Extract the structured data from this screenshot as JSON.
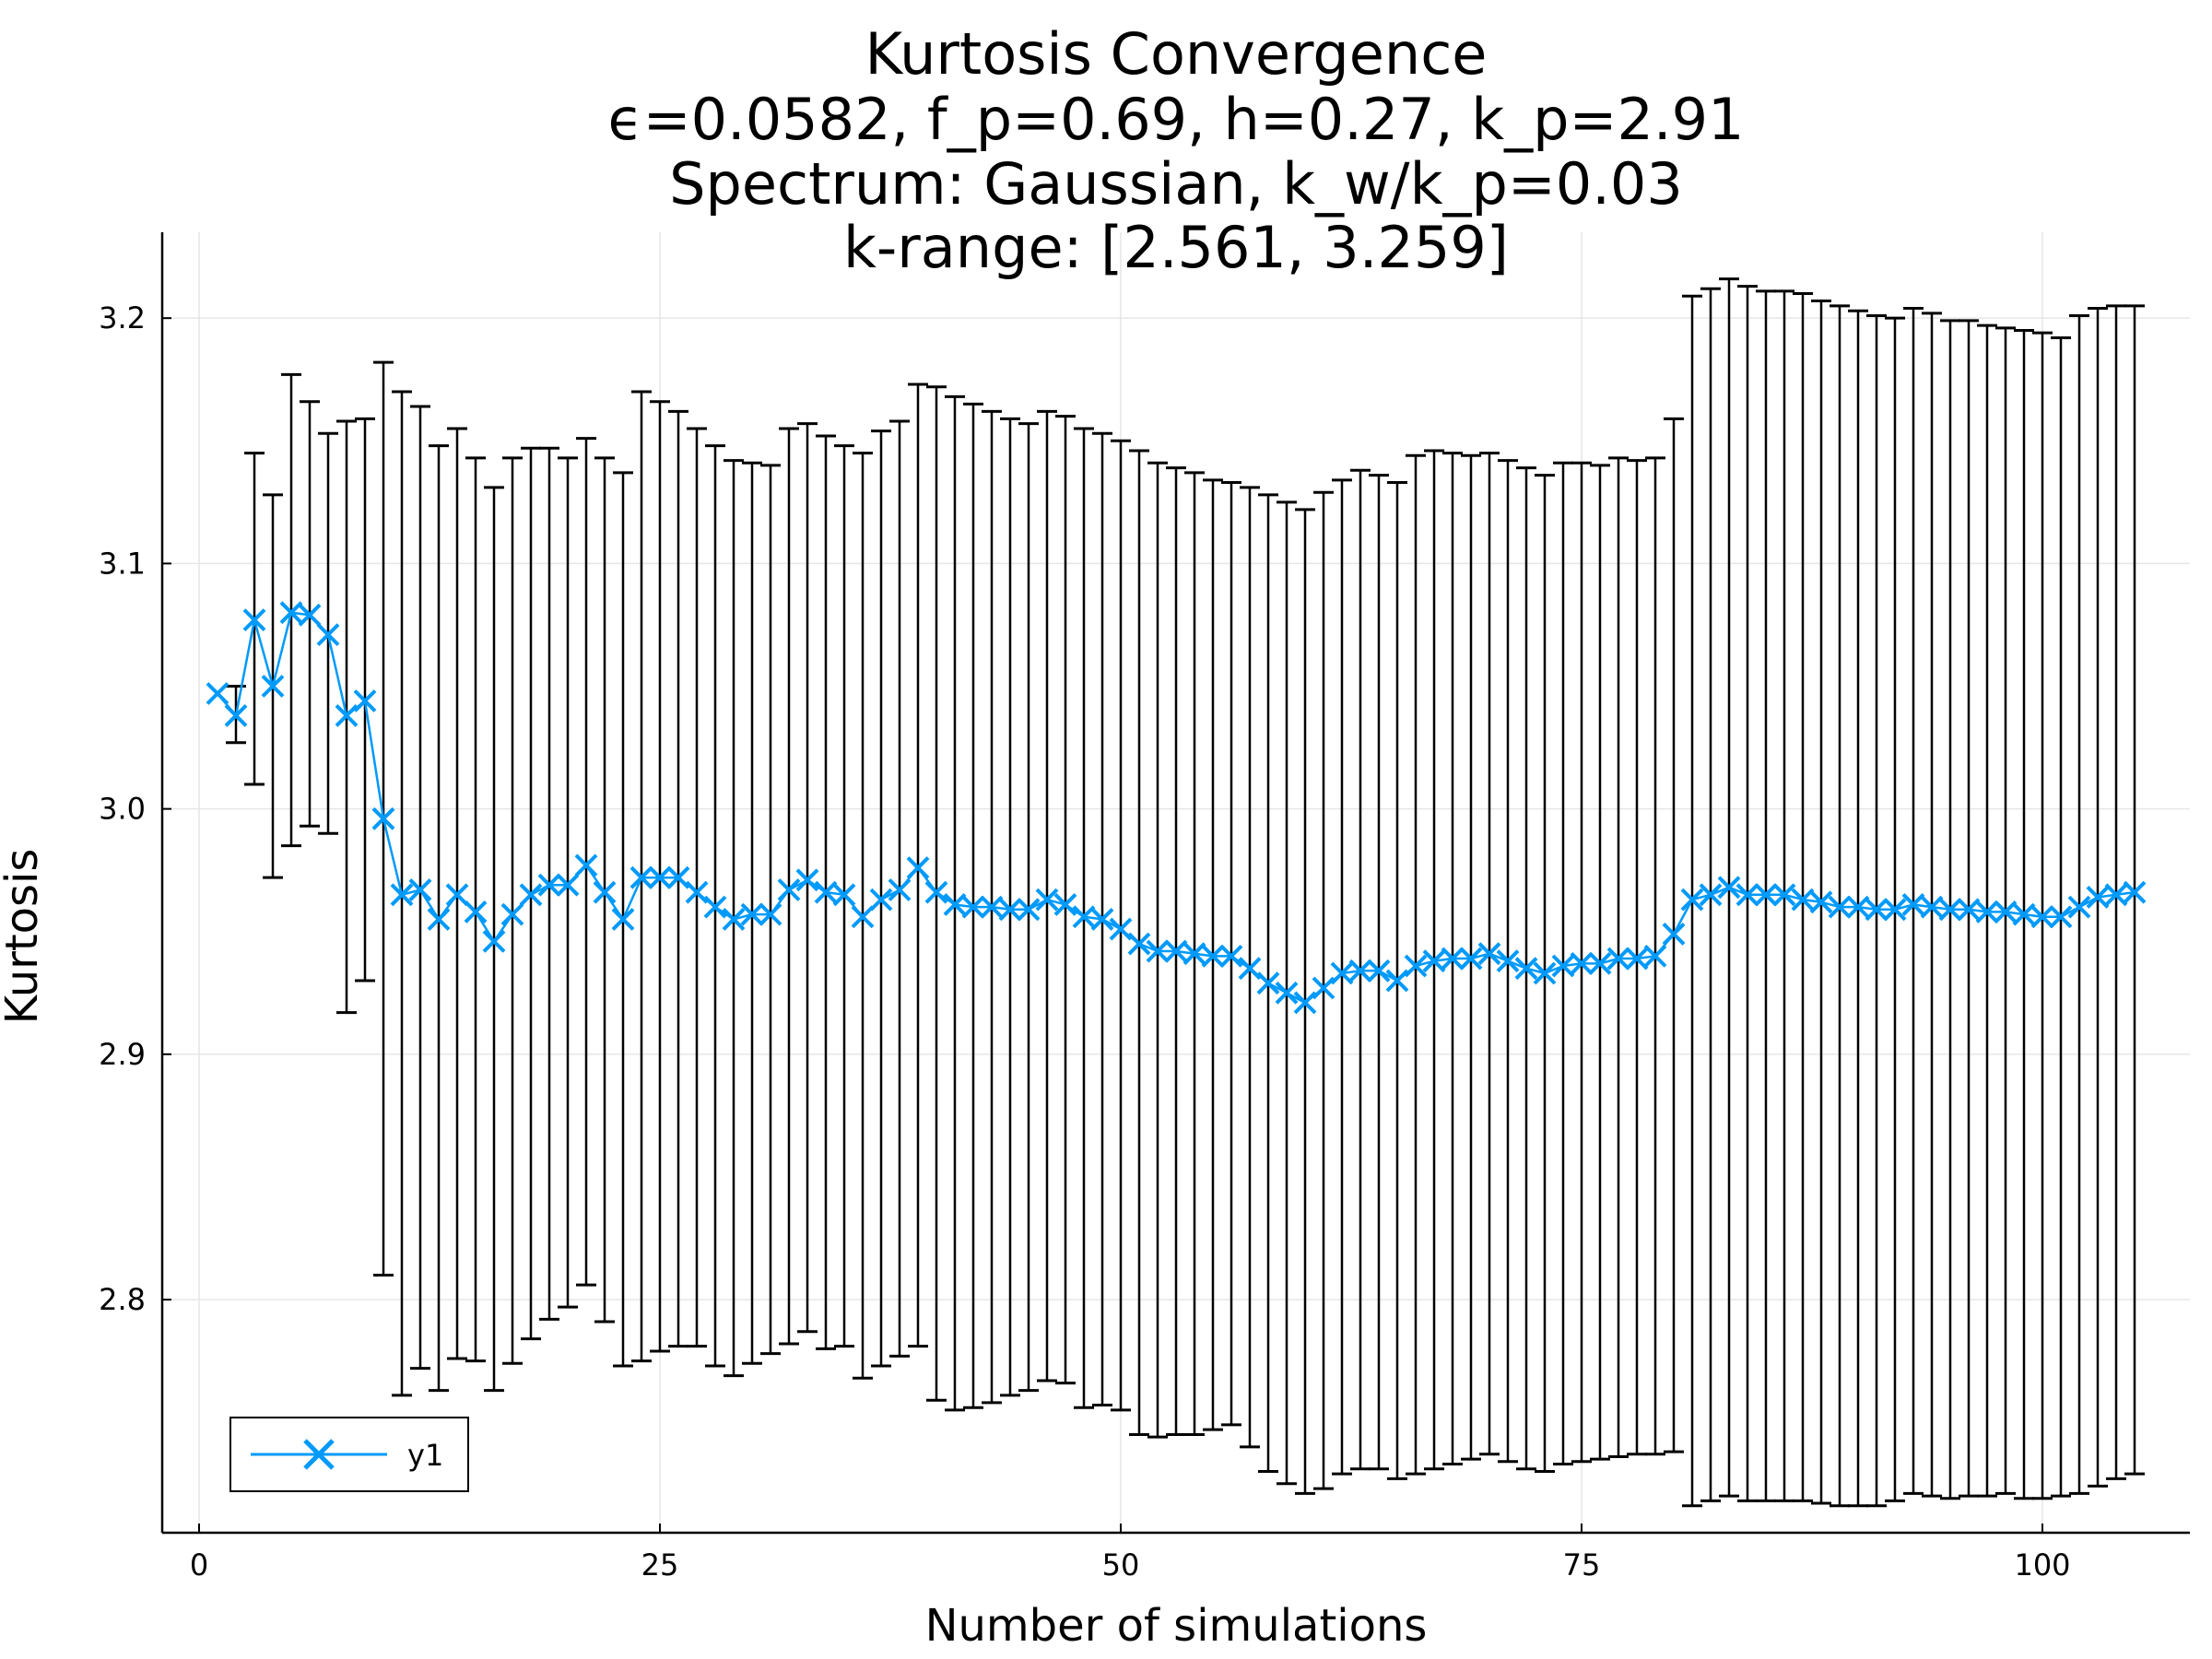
{
  "chart_data": {
    "type": "line",
    "title_lines": [
      "Kurtosis Convergence",
      "ϵ=0.0582, f_p=0.69, h=0.27, k_p=2.91",
      "Spectrum: Gaussian, k_w/k_p=0.03",
      "k-range: [2.561, 3.259]"
    ],
    "xlabel": "Number of simulations",
    "ylabel": "Kurtosis",
    "xlim": [
      -2,
      108
    ],
    "ylim": [
      2.705,
      3.235
    ],
    "xticks": [
      0,
      25,
      50,
      75,
      100
    ],
    "xtick_labels": [
      "0",
      "25",
      "50",
      "75",
      "100"
    ],
    "yticks": [
      2.8,
      2.9,
      3.0,
      3.1,
      3.2
    ],
    "ytick_labels": [
      "2.8",
      "2.9",
      "3.0",
      "3.1",
      "3.2"
    ],
    "grid": true,
    "legend": {
      "position": "bottom-left",
      "entries": [
        "y1"
      ]
    },
    "colors": {
      "series": "#009AFA",
      "errorbar": "#000000",
      "grid": "#e6e6e6",
      "axis": "#000000"
    },
    "series": [
      {
        "name": "y1",
        "marker": "x",
        "x": [
          1,
          2,
          3,
          4,
          5,
          6,
          7,
          8,
          9,
          10,
          11,
          12,
          13,
          14,
          15,
          16,
          17,
          18,
          19,
          20,
          21,
          22,
          23,
          24,
          25,
          26,
          27,
          28,
          29,
          30,
          31,
          32,
          33,
          34,
          35,
          36,
          37,
          38,
          39,
          40,
          41,
          42,
          43,
          44,
          45,
          46,
          47,
          48,
          49,
          50,
          51,
          52,
          53,
          54,
          55,
          56,
          57,
          58,
          59,
          60,
          61,
          62,
          63,
          64,
          65,
          66,
          67,
          68,
          69,
          70,
          71,
          72,
          73,
          74,
          75,
          76,
          77,
          78,
          79,
          80,
          81,
          82,
          83,
          84,
          85,
          86,
          87,
          88,
          89,
          90,
          91,
          92,
          93,
          94,
          95,
          96,
          97,
          98,
          99,
          100,
          101,
          102,
          103,
          104,
          105
        ],
        "values": [
          3.047,
          3.038,
          3.077,
          3.05,
          3.08,
          3.079,
          3.071,
          3.038,
          3.044,
          2.996,
          2.965,
          2.967,
          2.955,
          2.965,
          2.958,
          2.946,
          2.957,
          2.965,
          2.969,
          2.969,
          2.977,
          2.966,
          2.955,
          2.972,
          2.972,
          2.972,
          2.966,
          2.96,
          2.955,
          2.957,
          2.957,
          2.967,
          2.971,
          2.966,
          2.965,
          2.956,
          2.963,
          2.967,
          2.976,
          2.966,
          2.961,
          2.96,
          2.96,
          2.959,
          2.959,
          2.963,
          2.961,
          2.956,
          2.955,
          2.951,
          2.945,
          2.942,
          2.942,
          2.941,
          2.94,
          2.94,
          2.935,
          2.929,
          2.925,
          2.921,
          2.927,
          2.933,
          2.934,
          2.934,
          2.93,
          2.936,
          2.938,
          2.939,
          2.939,
          2.941,
          2.938,
          2.935,
          2.933,
          2.936,
          2.937,
          2.937,
          2.939,
          2.939,
          2.94,
          2.949,
          2.963,
          2.965,
          2.968,
          2.965,
          2.965,
          2.965,
          2.963,
          2.962,
          2.96,
          2.96,
          2.959,
          2.959,
          2.961,
          2.96,
          2.959,
          2.959,
          2.958,
          2.958,
          2.957,
          2.956,
          2.956,
          2.96,
          2.964,
          2.965,
          2.966
        ],
        "err_lower": [
          null,
          3.027,
          3.01,
          2.972,
          2.985,
          2.993,
          2.99,
          2.917,
          2.93,
          2.81,
          2.761,
          2.772,
          2.763,
          2.776,
          2.775,
          2.763,
          2.774,
          2.784,
          2.792,
          2.797,
          2.806,
          2.791,
          2.773,
          2.775,
          2.779,
          2.781,
          2.781,
          2.773,
          2.769,
          2.774,
          2.778,
          2.782,
          2.787,
          2.78,
          2.781,
          2.768,
          2.773,
          2.777,
          2.781,
          2.759,
          2.755,
          2.756,
          2.758,
          2.761,
          2.763,
          2.767,
          2.766,
          2.756,
          2.757,
          2.755,
          2.745,
          2.744,
          2.745,
          2.745,
          2.747,
          2.749,
          2.74,
          2.73,
          2.725,
          2.721,
          2.723,
          2.729,
          2.731,
          2.731,
          2.727,
          2.729,
          2.731,
          2.733,
          2.735,
          2.737,
          2.734,
          2.731,
          2.73,
          2.733,
          2.734,
          2.735,
          2.736,
          2.737,
          2.737,
          2.738,
          2.716,
          2.718,
          2.72,
          2.718,
          2.718,
          2.718,
          2.718,
          2.717,
          2.716,
          2.716,
          2.716,
          2.718,
          2.721,
          2.72,
          2.719,
          2.72,
          2.72,
          2.721,
          2.719,
          2.719,
          2.72,
          2.721,
          2.724,
          2.727,
          2.729
        ],
        "err_upper": [
          null,
          3.05,
          3.145,
          3.128,
          3.177,
          3.166,
          3.153,
          3.158,
          3.159,
          3.182,
          3.17,
          3.164,
          3.148,
          3.155,
          3.143,
          3.131,
          3.143,
          3.147,
          3.147,
          3.143,
          3.151,
          3.143,
          3.137,
          3.17,
          3.166,
          3.162,
          3.155,
          3.148,
          3.142,
          3.141,
          3.14,
          3.155,
          3.157,
          3.152,
          3.148,
          3.145,
          3.154,
          3.158,
          3.173,
          3.172,
          3.168,
          3.165,
          3.162,
          3.159,
          3.157,
          3.162,
          3.16,
          3.155,
          3.153,
          3.15,
          3.146,
          3.141,
          3.139,
          3.137,
          3.134,
          3.133,
          3.131,
          3.128,
          3.125,
          3.122,
          3.129,
          3.134,
          3.138,
          3.136,
          3.133,
          3.144,
          3.146,
          3.145,
          3.144,
          3.145,
          3.142,
          3.139,
          3.136,
          3.141,
          3.141,
          3.14,
          3.143,
          3.142,
          3.143,
          3.159,
          3.209,
          3.212,
          3.216,
          3.213,
          3.211,
          3.211,
          3.21,
          3.207,
          3.205,
          3.203,
          3.201,
          3.2,
          3.204,
          3.202,
          3.199,
          3.199,
          3.197,
          3.196,
          3.195,
          3.194,
          3.192,
          3.201,
          3.204,
          3.205,
          3.205
        ]
      }
    ]
  }
}
